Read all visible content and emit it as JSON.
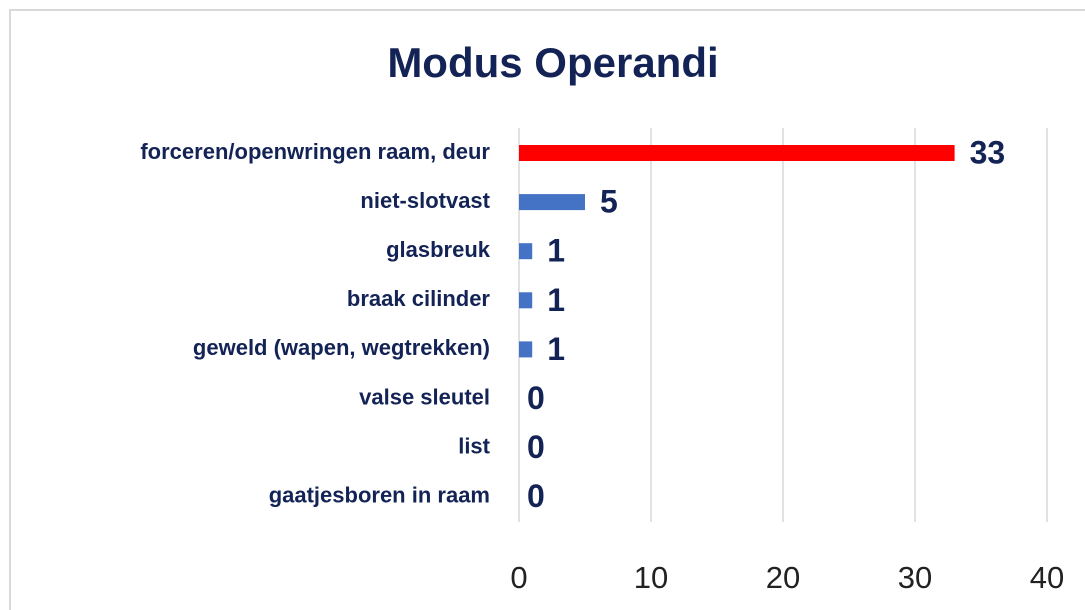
{
  "chart_data": {
    "type": "bar",
    "orientation": "horizontal",
    "title": "Modus Operandi",
    "categories": [
      "forceren/openwringen  raam, deur",
      "niet-slotvast",
      "glasbreuk",
      "braak cilinder",
      "geweld (wapen, wegtrekken)",
      "valse sleutel",
      "list",
      "gaatjesboren in raam"
    ],
    "values": [
      33,
      5,
      1,
      1,
      1,
      0,
      0,
      0
    ],
    "colors": [
      "#ff0000",
      "#4472c4",
      "#4472c4",
      "#4472c4",
      "#4472c4",
      "#4472c4",
      "#4472c4",
      "#4472c4"
    ],
    "xlim": [
      0,
      40
    ],
    "xticks": [
      0,
      10,
      20,
      30,
      40
    ],
    "grid": true
  }
}
